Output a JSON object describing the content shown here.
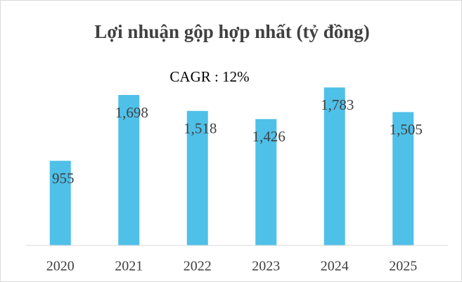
{
  "chart_data": {
    "type": "bar",
    "title": "Lợi nhuận gộp hợp nhất (tỷ đồng)",
    "annotation": "CAGR : 12%",
    "categories": [
      "2020",
      "2021",
      "2022",
      "2023",
      "2024",
      "2025"
    ],
    "values": [
      955,
      1698,
      1518,
      1426,
      1783,
      1505
    ],
    "value_labels": [
      "955",
      "1,698",
      "1,518",
      "1,426",
      "1,783",
      "1,505"
    ],
    "color": "#4fc0e8",
    "ylim": [
      0,
      2000
    ]
  }
}
